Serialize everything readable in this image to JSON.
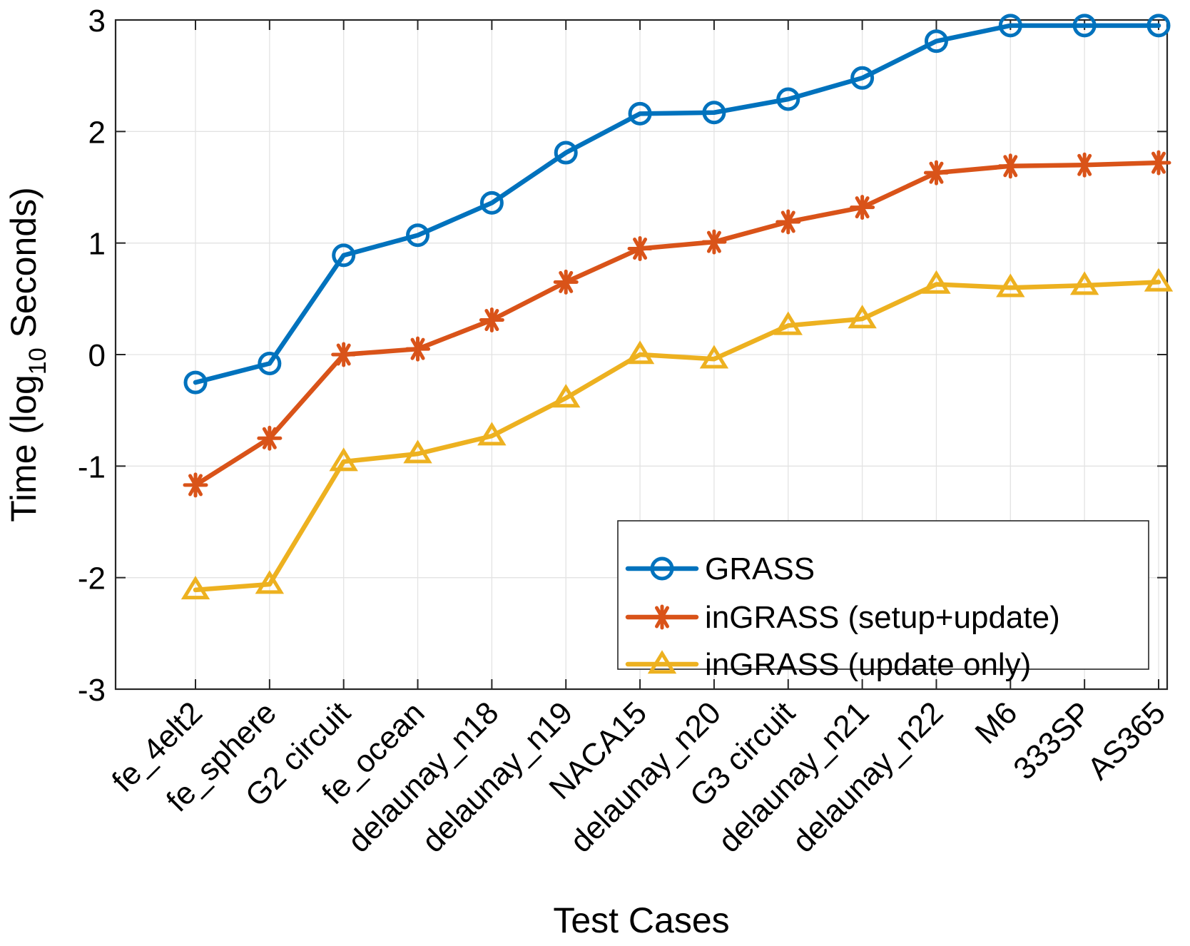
{
  "chart_data": {
    "type": "line",
    "title": "",
    "xlabel": "Test Cases",
    "ylabel": {
      "prefix": "Time (log",
      "subscript": "10",
      "suffix": " Seconds)"
    },
    "ylim": [
      -3,
      3
    ],
    "yticks": [
      "-3",
      "-2",
      "-1",
      "0",
      "1",
      "2",
      "3"
    ],
    "grid": true,
    "legend_position": "bottom-right",
    "categories": [
      "fe_4elt2",
      "fe_sphere",
      "G2 circuit",
      "fe_ocean",
      "delaunay_n18",
      "delaunay_n19",
      "NACA15",
      "delaunay_n20",
      "G3 circuit",
      "delaunay_n21",
      "delaunay_n22",
      "M6",
      "333SP",
      "AS365"
    ],
    "series": [
      {
        "name": "GRASS",
        "color": "#0072BD",
        "marker": "circle",
        "values": [
          -0.25,
          -0.08,
          0.89,
          1.07,
          1.36,
          1.81,
          2.16,
          2.17,
          2.29,
          2.48,
          2.81,
          2.95,
          2.95,
          2.95
        ]
      },
      {
        "name": "inGRASS (setup+update)",
        "color": "#D95319",
        "marker": "asterisk",
        "values": [
          -1.17,
          -0.75,
          0.0,
          0.05,
          0.31,
          0.65,
          0.95,
          1.01,
          1.19,
          1.32,
          1.63,
          1.69,
          1.7,
          1.72
        ]
      },
      {
        "name": "inGRASS (update only)",
        "color": "#EDB120",
        "marker": "triangle",
        "values": [
          -2.11,
          -2.06,
          -0.96,
          -0.89,
          -0.73,
          -0.39,
          0.0,
          -0.04,
          0.26,
          0.32,
          0.63,
          0.6,
          0.62,
          0.65
        ]
      }
    ]
  }
}
